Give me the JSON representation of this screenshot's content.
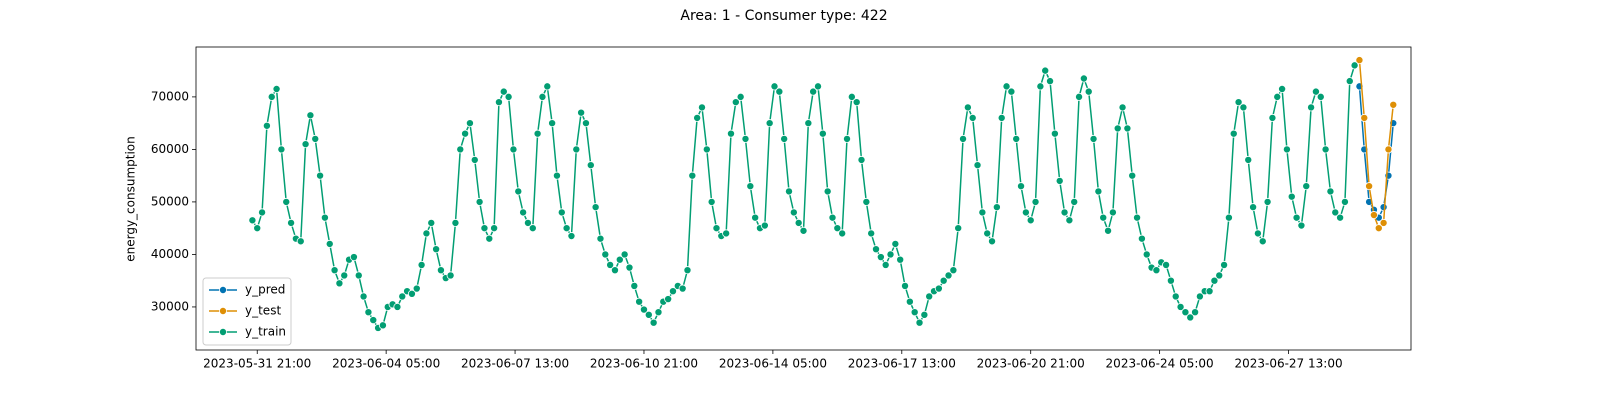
{
  "chart_data": {
    "type": "line",
    "title": "Area: 1 - Consumer type: 422",
    "y_label": "energy_consumption",
    "xlim": [
      "2023-05-30 07:00",
      "2023-06-30 17:00"
    ],
    "xticks": [
      "2023-05-31 21:00",
      "2023-06-04 05:00",
      "2023-06-07 13:00",
      "2023-06-10 21:00",
      "2023-06-14 05:00",
      "2023-06-17 13:00",
      "2023-06-20 21:00",
      "2023-06-24 05:00",
      "2023-06-27 13:00"
    ],
    "ylim": [
      21800,
      79500
    ],
    "yticks": [
      30000,
      40000,
      50000,
      60000,
      70000
    ],
    "legend": "lower left",
    "markers": true,
    "series": [
      {
        "name": "y_pred",
        "color": "#0173b2",
        "x": [
          "2023-06-29 09:00",
          "2023-06-29 12:00",
          "2023-06-29 15:00",
          "2023-06-29 18:00",
          "2023-06-29 21:00",
          "2023-06-30 00:00",
          "2023-06-30 03:00",
          "2023-06-30 06:00"
        ],
        "values": [
          72000,
          60000,
          50000,
          48500,
          47000,
          49000,
          55000,
          65000
        ]
      },
      {
        "name": "y_test",
        "color": "#de8f05",
        "x": [
          "2023-06-29 09:00",
          "2023-06-29 12:00",
          "2023-06-29 15:00",
          "2023-06-29 18:00",
          "2023-06-29 21:00",
          "2023-06-30 00:00",
          "2023-06-30 03:00",
          "2023-06-30 06:00"
        ],
        "values": [
          77000,
          66000,
          53000,
          47500,
          45000,
          46000,
          60000,
          68500
        ]
      },
      {
        "name": "y_train",
        "color": "#029e73",
        "x": [
          "2023-05-31 18:00",
          "2023-05-31 21:00",
          "2023-06-01 00:00",
          "2023-06-01 03:00",
          "2023-06-01 06:00",
          "2023-06-01 09:00",
          "2023-06-01 12:00",
          "2023-06-01 15:00",
          "2023-06-01 18:00",
          "2023-06-01 21:00",
          "2023-06-02 00:00",
          "2023-06-02 03:00",
          "2023-06-02 06:00",
          "2023-06-02 09:00",
          "2023-06-02 12:00",
          "2023-06-02 15:00",
          "2023-06-02 18:00",
          "2023-06-02 21:00",
          "2023-06-03 00:00",
          "2023-06-03 03:00",
          "2023-06-03 06:00",
          "2023-06-03 09:00",
          "2023-06-03 12:00",
          "2023-06-03 15:00",
          "2023-06-03 18:00",
          "2023-06-03 21:00",
          "2023-06-04 00:00",
          "2023-06-04 03:00",
          "2023-06-04 06:00",
          "2023-06-04 09:00",
          "2023-06-04 12:00",
          "2023-06-04 15:00",
          "2023-06-04 18:00",
          "2023-06-04 21:00",
          "2023-06-05 00:00",
          "2023-06-05 03:00",
          "2023-06-05 06:00",
          "2023-06-05 09:00",
          "2023-06-05 12:00",
          "2023-06-05 15:00",
          "2023-06-05 18:00",
          "2023-06-05 21:00",
          "2023-06-06 00:00",
          "2023-06-06 03:00",
          "2023-06-06 06:00",
          "2023-06-06 09:00",
          "2023-06-06 12:00",
          "2023-06-06 15:00",
          "2023-06-06 18:00",
          "2023-06-06 21:00",
          "2023-06-07 00:00",
          "2023-06-07 03:00",
          "2023-06-07 06:00",
          "2023-06-07 09:00",
          "2023-06-07 12:00",
          "2023-06-07 15:00",
          "2023-06-07 18:00",
          "2023-06-07 21:00",
          "2023-06-08 00:00",
          "2023-06-08 03:00",
          "2023-06-08 06:00",
          "2023-06-08 09:00",
          "2023-06-08 12:00",
          "2023-06-08 15:00",
          "2023-06-08 18:00",
          "2023-06-08 21:00",
          "2023-06-09 00:00",
          "2023-06-09 03:00",
          "2023-06-09 06:00",
          "2023-06-09 09:00",
          "2023-06-09 12:00",
          "2023-06-09 15:00",
          "2023-06-09 18:00",
          "2023-06-09 21:00",
          "2023-06-10 00:00",
          "2023-06-10 03:00",
          "2023-06-10 06:00",
          "2023-06-10 09:00",
          "2023-06-10 12:00",
          "2023-06-10 15:00",
          "2023-06-10 18:00",
          "2023-06-10 21:00",
          "2023-06-11 00:00",
          "2023-06-11 03:00",
          "2023-06-11 06:00",
          "2023-06-11 09:00",
          "2023-06-11 12:00",
          "2023-06-11 15:00",
          "2023-06-11 18:00",
          "2023-06-11 21:00",
          "2023-06-12 00:00",
          "2023-06-12 03:00",
          "2023-06-12 06:00",
          "2023-06-12 09:00",
          "2023-06-12 12:00",
          "2023-06-12 15:00",
          "2023-06-12 18:00",
          "2023-06-12 21:00",
          "2023-06-13 00:00",
          "2023-06-13 03:00",
          "2023-06-13 06:00",
          "2023-06-13 09:00",
          "2023-06-13 12:00",
          "2023-06-13 15:00",
          "2023-06-13 18:00",
          "2023-06-13 21:00",
          "2023-06-14 00:00",
          "2023-06-14 03:00",
          "2023-06-14 06:00",
          "2023-06-14 09:00",
          "2023-06-14 12:00",
          "2023-06-14 15:00",
          "2023-06-14 18:00",
          "2023-06-14 21:00",
          "2023-06-15 00:00",
          "2023-06-15 03:00",
          "2023-06-15 06:00",
          "2023-06-15 09:00",
          "2023-06-15 12:00",
          "2023-06-15 15:00",
          "2023-06-15 18:00",
          "2023-06-15 21:00",
          "2023-06-16 00:00",
          "2023-06-16 03:00",
          "2023-06-16 06:00",
          "2023-06-16 09:00",
          "2023-06-16 12:00",
          "2023-06-16 15:00",
          "2023-06-16 18:00",
          "2023-06-16 21:00",
          "2023-06-17 00:00",
          "2023-06-17 03:00",
          "2023-06-17 06:00",
          "2023-06-17 09:00",
          "2023-06-17 12:00",
          "2023-06-17 15:00",
          "2023-06-17 18:00",
          "2023-06-17 21:00",
          "2023-06-18 00:00",
          "2023-06-18 03:00",
          "2023-06-18 06:00",
          "2023-06-18 09:00",
          "2023-06-18 12:00",
          "2023-06-18 15:00",
          "2023-06-18 18:00",
          "2023-06-18 21:00",
          "2023-06-19 00:00",
          "2023-06-19 03:00",
          "2023-06-19 06:00",
          "2023-06-19 09:00",
          "2023-06-19 12:00",
          "2023-06-19 15:00",
          "2023-06-19 18:00",
          "2023-06-19 21:00",
          "2023-06-20 00:00",
          "2023-06-20 03:00",
          "2023-06-20 06:00",
          "2023-06-20 09:00",
          "2023-06-20 12:00",
          "2023-06-20 15:00",
          "2023-06-20 18:00",
          "2023-06-20 21:00",
          "2023-06-21 00:00",
          "2023-06-21 03:00",
          "2023-06-21 06:00",
          "2023-06-21 09:00",
          "2023-06-21 12:00",
          "2023-06-21 15:00",
          "2023-06-21 18:00",
          "2023-06-21 21:00",
          "2023-06-22 00:00",
          "2023-06-22 03:00",
          "2023-06-22 06:00",
          "2023-06-22 09:00",
          "2023-06-22 12:00",
          "2023-06-22 15:00",
          "2023-06-22 18:00",
          "2023-06-22 21:00",
          "2023-06-23 00:00",
          "2023-06-23 03:00",
          "2023-06-23 06:00",
          "2023-06-23 09:00",
          "2023-06-23 12:00",
          "2023-06-23 15:00",
          "2023-06-23 18:00",
          "2023-06-23 21:00",
          "2023-06-24 00:00",
          "2023-06-24 03:00",
          "2023-06-24 06:00",
          "2023-06-24 09:00",
          "2023-06-24 12:00",
          "2023-06-24 15:00",
          "2023-06-24 18:00",
          "2023-06-24 21:00",
          "2023-06-25 00:00",
          "2023-06-25 03:00",
          "2023-06-25 06:00",
          "2023-06-25 09:00",
          "2023-06-25 12:00",
          "2023-06-25 15:00",
          "2023-06-25 18:00",
          "2023-06-25 21:00",
          "2023-06-26 00:00",
          "2023-06-26 03:00",
          "2023-06-26 06:00",
          "2023-06-26 09:00",
          "2023-06-26 12:00",
          "2023-06-26 15:00",
          "2023-06-26 18:00",
          "2023-06-26 21:00",
          "2023-06-27 00:00",
          "2023-06-27 03:00",
          "2023-06-27 06:00",
          "2023-06-27 09:00",
          "2023-06-27 12:00",
          "2023-06-27 15:00",
          "2023-06-27 18:00",
          "2023-06-27 21:00",
          "2023-06-28 00:00",
          "2023-06-28 03:00",
          "2023-06-28 06:00",
          "2023-06-28 09:00",
          "2023-06-28 12:00",
          "2023-06-28 15:00",
          "2023-06-28 18:00",
          "2023-06-28 21:00",
          "2023-06-29 00:00",
          "2023-06-29 03:00",
          "2023-06-29 06:00"
        ],
        "values": [
          46500,
          45000,
          48000,
          64500,
          70000,
          71500,
          60000,
          50000,
          46000,
          43000,
          42500,
          61000,
          66500,
          62000,
          55000,
          47000,
          42000,
          37000,
          34500,
          36000,
          39000,
          39500,
          36000,
          32000,
          29000,
          27500,
          26000,
          26500,
          30000,
          30500,
          30000,
          32000,
          33000,
          32500,
          33500,
          38000,
          44000,
          46000,
          41000,
          37000,
          35500,
          36000,
          46000,
          60000,
          63000,
          65000,
          58000,
          50000,
          45000,
          43000,
          45000,
          69000,
          71000,
          70000,
          60000,
          52000,
          48000,
          46000,
          45000,
          63000,
          70000,
          72000,
          65000,
          55000,
          48000,
          45000,
          43500,
          60000,
          67000,
          65000,
          57000,
          49000,
          43000,
          40000,
          38000,
          37000,
          39000,
          40000,
          37500,
          34000,
          31000,
          29500,
          28500,
          27000,
          29000,
          31000,
          31500,
          33000,
          34000,
          33500,
          37000,
          55000,
          66000,
          68000,
          60000,
          50000,
          45000,
          43500,
          44000,
          63000,
          69000,
          70000,
          62000,
          53000,
          47000,
          45000,
          45500,
          65000,
          72000,
          71000,
          62000,
          52000,
          48000,
          46000,
          44500,
          65000,
          71000,
          72000,
          63000,
          52000,
          47000,
          45000,
          44000,
          62000,
          70000,
          69000,
          58000,
          50000,
          44000,
          41000,
          39500,
          38000,
          40000,
          42000,
          39000,
          34000,
          31000,
          29000,
          27000,
          28500,
          32000,
          33000,
          33500,
          35000,
          36000,
          37000,
          45000,
          62000,
          68000,
          66000,
          57000,
          48000,
          44000,
          42500,
          49000,
          66000,
          72000,
          71000,
          62000,
          53000,
          48000,
          46500,
          50000,
          72000,
          75000,
          73000,
          63000,
          54000,
          48000,
          46500,
          50000,
          70000,
          73500,
          71000,
          62000,
          52000,
          47000,
          44500,
          48000,
          64000,
          68000,
          64000,
          55000,
          47000,
          43000,
          40000,
          37500,
          37000,
          38500,
          38000,
          35000,
          32000,
          30000,
          29000,
          28000,
          29000,
          32000,
          33000,
          33000,
          35000,
          36000,
          38000,
          47000,
          63000,
          69000,
          68000,
          58000,
          49000,
          44000,
          42500,
          50000,
          66000,
          70000,
          71500,
          60000,
          51000,
          47000,
          45500,
          53000,
          68000,
          71000,
          70000,
          60000,
          52000,
          48000,
          47000,
          50000,
          73000,
          76000
        ]
      }
    ]
  }
}
